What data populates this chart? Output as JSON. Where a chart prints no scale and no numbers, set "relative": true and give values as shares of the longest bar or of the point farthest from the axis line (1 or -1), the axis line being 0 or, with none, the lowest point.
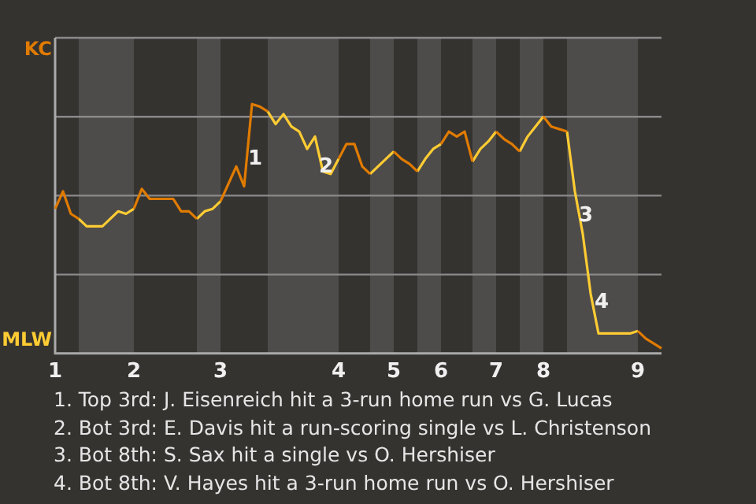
{
  "chart_data": {
    "type": "line",
    "relative": true,
    "categories": [
      "1",
      null,
      null,
      null,
      null,
      null,
      null,
      null,
      null,
      null,
      "2",
      null,
      null,
      null,
      null,
      null,
      null,
      null,
      null,
      null,
      null,
      "3",
      null,
      null,
      null,
      null,
      null,
      null,
      null,
      null,
      null,
      null,
      null,
      null,
      null,
      null,
      "4",
      null,
      null,
      null,
      null,
      null,
      null,
      "5",
      null,
      null,
      null,
      null,
      null,
      "6",
      null,
      null,
      null,
      null,
      null,
      null,
      "7",
      null,
      null,
      null,
      null,
      null,
      "8",
      null,
      null,
      null,
      null,
      null,
      null,
      null,
      null,
      null,
      null,
      null,
      "9",
      null,
      null,
      null
    ],
    "series": [
      {
        "name": "KC",
        "color": "#e07b00",
        "values": [
          0.58,
          0.65,
          0.56,
          0.54,
          null,
          null,
          null,
          null,
          null,
          null,
          0.58,
          0.66,
          0.62,
          0.62,
          0.62,
          0.62,
          0.57,
          0.57,
          0.54,
          null,
          null,
          0.61,
          0.68,
          0.75,
          0.67,
          1,
          0.99,
          0.97,
          null,
          null,
          null,
          null,
          null,
          null,
          null,
          null,
          0.78,
          0.84,
          0.84,
          0.75,
          0.72,
          null,
          null,
          0.81,
          0.78,
          0.76,
          0.73,
          null,
          null,
          0.84,
          0.89,
          0.87,
          0.89,
          0.77,
          null,
          null,
          0.89,
          0.86,
          0.84,
          0.81,
          null,
          null,
          0.95,
          0.91,
          0.9,
          0.89,
          null,
          null,
          null,
          null,
          null,
          null,
          null,
          null,
          0.09,
          0.06,
          0.04,
          0.02
        ]
      },
      {
        "name": "MLW",
        "color": "#ffcc33",
        "values": [
          null,
          null,
          null,
          0.54,
          0.51,
          0.51,
          0.51,
          0.54,
          0.57,
          0.56,
          0.58,
          null,
          null,
          null,
          null,
          null,
          null,
          null,
          0.54,
          0.57,
          0.58,
          0.61,
          null,
          null,
          null,
          null,
          null,
          0.97,
          0.92,
          0.96,
          0.91,
          0.89,
          0.82,
          0.87,
          0.73,
          0.72,
          0.78,
          null,
          null,
          null,
          0.72,
          0.75,
          0.78,
          0.81,
          null,
          null,
          0.73,
          0.78,
          0.82,
          0.84,
          null,
          null,
          null,
          0.77,
          0.82,
          0.85,
          0.89,
          null,
          null,
          0.81,
          0.87,
          0.91,
          0.95,
          null,
          null,
          0.89,
          0.65,
          0.48,
          0.24,
          0.08,
          0.08,
          0.08,
          0.08,
          0.08,
          0.09,
          null,
          null,
          null
        ]
      }
    ],
    "grid": "y",
    "legend": false,
    "marker": "none",
    "line_style": "solid",
    "annotations": [
      "1",
      "2",
      "3",
      "4",
      "1. Top 3rd: J. Eisenreich hit a 3-run home run vs G. Lucas",
      "2. Bot 3rd: E. Davis hit a run-scoring single vs L. Christenson",
      "3. Bot 8th: S. Sax hit a single vs O. Hershiser",
      "4. Bot 8th: V. Hayes hit a 3-run home run vs O. Hershiser"
    ]
  }
}
